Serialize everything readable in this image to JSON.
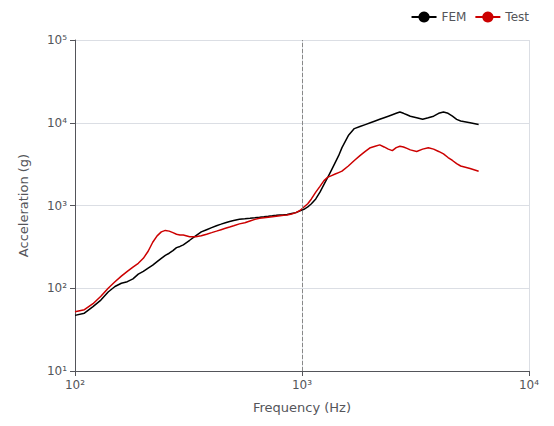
{
  "chart_data": {
    "type": "line",
    "xlabel": "Frequency (Hz)",
    "ylabel": "Acceleration (g)",
    "log": true,
    "grid": true,
    "legend": "upper right",
    "xlim": [
      100,
      10000
    ],
    "ylim": [
      10,
      100000
    ],
    "xticks": [
      {
        "value": 100,
        "label": "10²"
      },
      {
        "value": 1000,
        "label": "10³"
      },
      {
        "value": 10000,
        "label": "10⁴"
      }
    ],
    "yticks": [
      {
        "value": 10,
        "label": "10¹"
      },
      {
        "value": 100,
        "label": "10²"
      },
      {
        "value": 1000,
        "label": "10³"
      },
      {
        "value": 10000,
        "label": "10⁴"
      },
      {
        "value": 100000,
        "label": "10⁵"
      }
    ],
    "vline_x": 1000,
    "series": [
      {
        "name": "FEM",
        "color": "#000000",
        "x": [
          100,
          110,
          120,
          130,
          140,
          150,
          160,
          170,
          180,
          190,
          200,
          210,
          220,
          230,
          240,
          250,
          260,
          270,
          280,
          290,
          300,
          320,
          340,
          360,
          380,
          400,
          420,
          440,
          460,
          480,
          500,
          530,
          560,
          590,
          620,
          650,
          680,
          710,
          740,
          770,
          800,
          830,
          860,
          900,
          940,
          980,
          1020,
          1060,
          1100,
          1150,
          1200,
          1250,
          1300,
          1350,
          1400,
          1450,
          1500,
          1600,
          1700,
          1800,
          1900,
          2000,
          2100,
          2200,
          2300,
          2400,
          2500,
          2600,
          2700,
          2800,
          2900,
          3000,
          3200,
          3400,
          3600,
          3800,
          4000,
          4200,
          4400,
          4600,
          4800,
          5000,
          5500,
          6000
        ],
        "values": [
          47,
          50,
          60,
          72,
          90,
          105,
          115,
          120,
          130,
          148,
          160,
          175,
          190,
          210,
          230,
          250,
          265,
          285,
          310,
          320,
          335,
          380,
          430,
          480,
          510,
          540,
          570,
          595,
          620,
          640,
          660,
          680,
          690,
          700,
          710,
          720,
          730,
          740,
          750,
          760,
          770,
          775,
          780,
          800,
          820,
          860,
          900,
          960,
          1050,
          1200,
          1450,
          1800,
          2200,
          2700,
          3300,
          4000,
          5000,
          7000,
          8500,
          9000,
          9500,
          10000,
          10500,
          11000,
          11500,
          12000,
          12500,
          13000,
          13500,
          13000,
          12500,
          12000,
          11500,
          11000,
          11500,
          12000,
          13000,
          13500,
          13000,
          12000,
          11000,
          10500,
          10000,
          9500
        ]
      },
      {
        "name": "Test",
        "color": "#cc0000",
        "x": [
          100,
          110,
          120,
          130,
          140,
          150,
          160,
          170,
          180,
          190,
          200,
          210,
          220,
          230,
          240,
          250,
          260,
          270,
          280,
          290,
          300,
          320,
          340,
          360,
          380,
          400,
          420,
          440,
          460,
          480,
          500,
          530,
          560,
          590,
          620,
          650,
          680,
          710,
          740,
          770,
          800,
          830,
          860,
          900,
          940,
          980,
          1020,
          1060,
          1100,
          1150,
          1200,
          1250,
          1300,
          1350,
          1400,
          1450,
          1500,
          1600,
          1700,
          1800,
          1900,
          2000,
          2100,
          2200,
          2300,
          2400,
          2500,
          2600,
          2700,
          2800,
          2900,
          3000,
          3200,
          3400,
          3600,
          3800,
          4000,
          4200,
          4400,
          4600,
          4800,
          5000,
          5500,
          6000
        ],
        "values": [
          52,
          55,
          65,
          80,
          100,
          120,
          140,
          160,
          180,
          200,
          230,
          280,
          360,
          430,
          480,
          500,
          490,
          470,
          450,
          440,
          440,
          420,
          420,
          430,
          450,
          470,
          490,
          510,
          530,
          550,
          570,
          600,
          620,
          650,
          680,
          700,
          710,
          720,
          730,
          740,
          750,
          760,
          770,
          790,
          820,
          870,
          960,
          1050,
          1200,
          1450,
          1700,
          2000,
          2200,
          2300,
          2400,
          2500,
          2600,
          3000,
          3500,
          4000,
          4500,
          5000,
          5200,
          5400,
          5100,
          4800,
          4600,
          5000,
          5200,
          5100,
          4900,
          4700,
          4500,
          4800,
          5000,
          4800,
          4500,
          4200,
          3800,
          3500,
          3200,
          3000,
          2800,
          2600
        ]
      }
    ]
  }
}
